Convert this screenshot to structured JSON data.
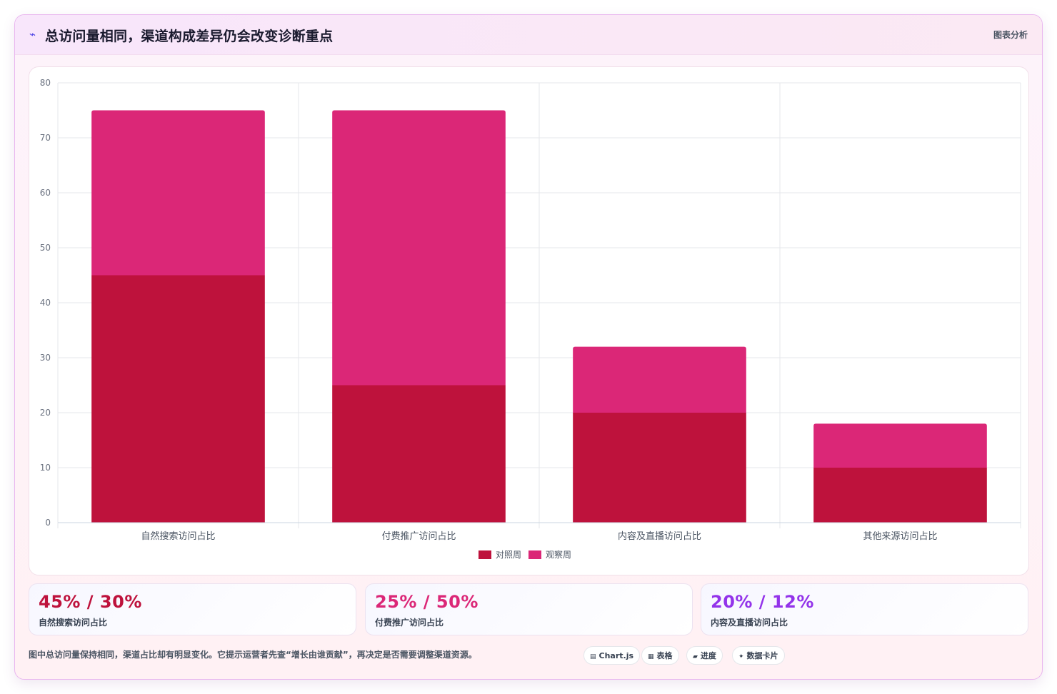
{
  "header": {
    "title": "总访问量相同，渠道构成差异仍会改变诊断重点",
    "tag": "图表分析"
  },
  "chart_data": {
    "type": "bar",
    "stacked": true,
    "categories": [
      "自然搜索访问占比",
      "付费推广访问占比",
      "内容及直播访问占比",
      "其他来源访问占比"
    ],
    "series": [
      {
        "name": "对照周",
        "values": [
          45,
          25,
          20,
          10
        ],
        "color": "#be123c"
      },
      {
        "name": "观察周",
        "values": [
          30,
          50,
          12,
          8
        ],
        "color": "#db2777"
      }
    ],
    "ylim": [
      0,
      80
    ],
    "yticks": [
      0,
      10,
      20,
      30,
      40,
      50,
      60,
      70,
      80
    ],
    "grid": true,
    "legend_position": "bottom"
  },
  "stats": [
    {
      "value": "45% / 30%",
      "label": "自然搜索访问占比",
      "color": "#be123c"
    },
    {
      "value": "25% / 50%",
      "label": "付费推广访问占比",
      "color": "#db2777"
    },
    {
      "value": "20% / 12%",
      "label": "内容及直播访问占比",
      "color": "#9333ea"
    }
  ],
  "footnote": "图中总访问量保持相同，渠道占比却有明显变化。它提示运营者先查“增长由谁贡献”，再决定是否需要调整渠道资源。",
  "chips": [
    {
      "icon": "▤",
      "label": "Chart.js"
    },
    {
      "icon": "▦",
      "label": "表格"
    },
    {
      "icon": "▰",
      "label": "进度"
    },
    {
      "icon": "✦",
      "label": "数据卡片"
    }
  ]
}
